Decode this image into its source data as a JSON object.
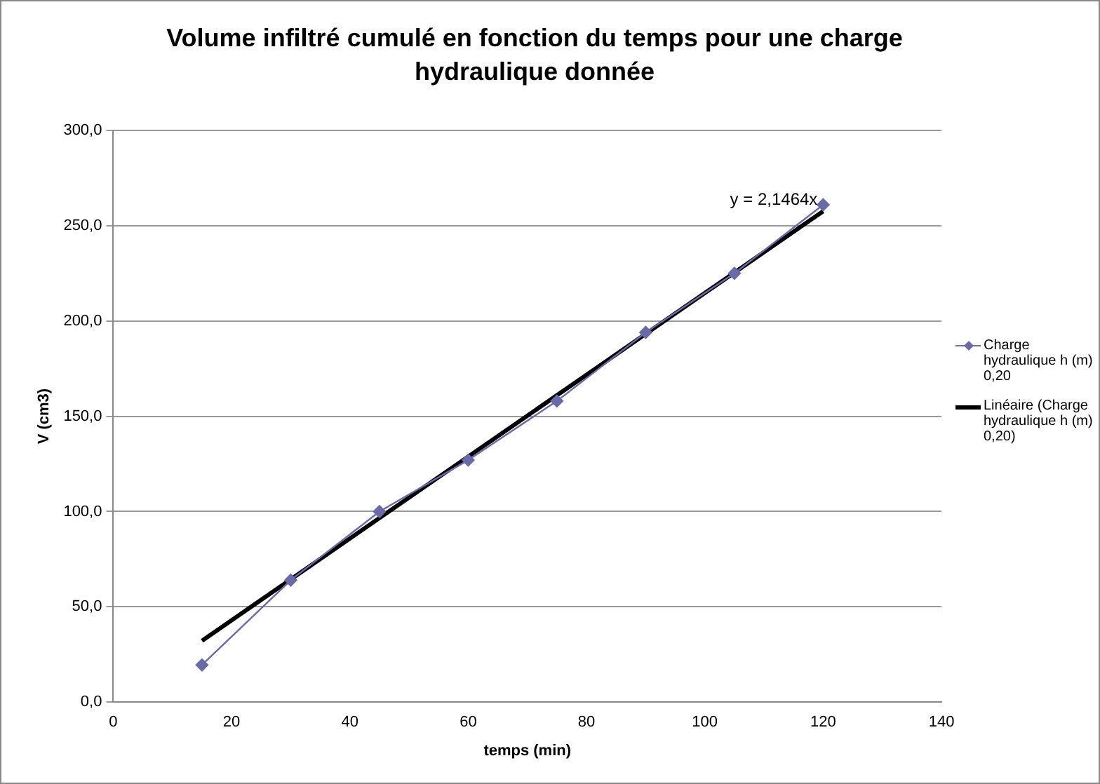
{
  "chart_data": {
    "type": "line",
    "title": "Volume infiltré cumulé en fonction du temps pour une charge hydraulique donnée",
    "xlabel": "temps (min)",
    "ylabel": "V (cm3)",
    "xlim": [
      0,
      140
    ],
    "xticks": [
      0,
      20,
      40,
      60,
      80,
      100,
      120,
      140
    ],
    "ylim": [
      0,
      300
    ],
    "yticks": [
      {
        "value": 0,
        "label": "0,0"
      },
      {
        "value": 50,
        "label": "50,0"
      },
      {
        "value": 100,
        "label": "100,0"
      },
      {
        "value": 150,
        "label": "150,0"
      },
      {
        "value": 200,
        "label": "200,0"
      },
      {
        "value": 250,
        "label": "250,0"
      },
      {
        "value": 300,
        "label": "300,0"
      }
    ],
    "grid": "y",
    "legend": "right",
    "annotations": [
      {
        "text": "y = 2,1464x",
        "x": 120,
        "y": 257.6
      }
    ],
    "series": [
      {
        "name": "Charge hydraulique h (m) 0,20",
        "color": "#6a6aa8",
        "marker": "diamond",
        "x": [
          15,
          30,
          45,
          60,
          75,
          90,
          105,
          120
        ],
        "values": [
          19.5,
          64,
          100,
          127,
          158,
          194,
          225,
          261
        ]
      },
      {
        "name": "Linéaire (Charge hydraulique h (m) 0,20)",
        "color": "#000000",
        "marker": "none",
        "x": [
          15,
          120
        ],
        "values": [
          32.2,
          257.6
        ]
      }
    ]
  }
}
